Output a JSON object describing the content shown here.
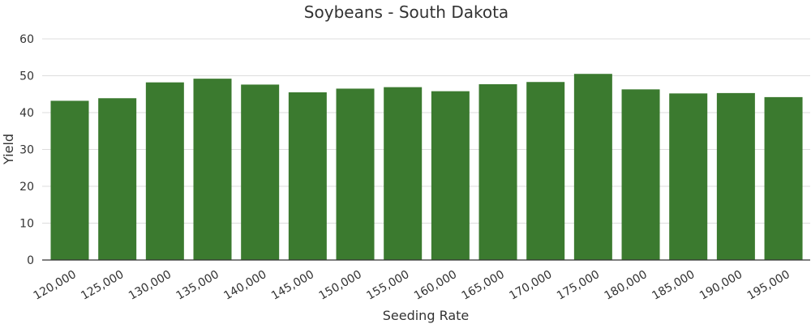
{
  "chart_data": {
    "type": "bar",
    "title": "Soybeans - South Dakota",
    "xlabel": "Seeding Rate",
    "ylabel": "Yield",
    "categories": [
      "120,000",
      "125,000",
      "130,000",
      "135,000",
      "140,000",
      "145,000",
      "150,000",
      "155,000",
      "160,000",
      "165,000",
      "170,000",
      "175,000",
      "180,000",
      "185,000",
      "190,000",
      "195,000"
    ],
    "values": [
      43.2,
      43.9,
      48.2,
      49.2,
      47.6,
      45.5,
      46.5,
      46.9,
      45.8,
      47.7,
      48.3,
      50.5,
      46.3,
      45.2,
      45.3,
      44.2
    ],
    "ylim": [
      0,
      60
    ],
    "yticks": [
      0,
      10,
      20,
      30,
      40,
      50,
      60
    ],
    "grid": true,
    "bar_color": "#3b7a2f"
  }
}
